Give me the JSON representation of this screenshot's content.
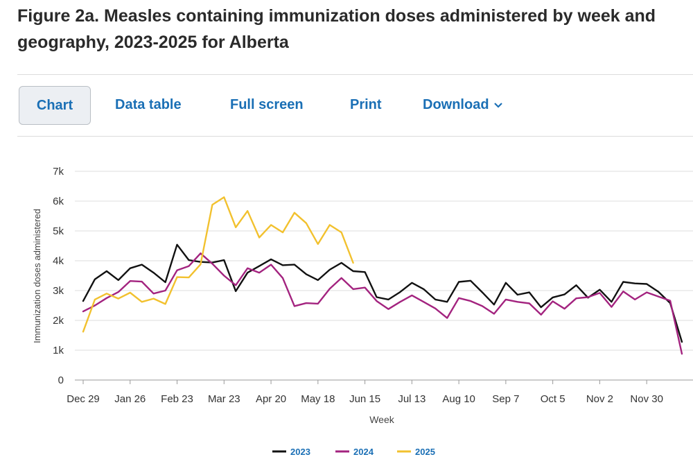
{
  "header": {
    "title": "Figure 2a. Measles containing immunization doses administered by week and geography, 2023-2025 for Alberta"
  },
  "toolbar": {
    "tabs": [
      {
        "label": "Chart",
        "active": true
      },
      {
        "label": "Data table"
      },
      {
        "label": "Full screen"
      },
      {
        "label": "Print"
      },
      {
        "label": "Download"
      }
    ]
  },
  "colors": {
    "accent": "#1a6fb5",
    "grid": "#dddddd",
    "axis": "#999999"
  },
  "chart_data": {
    "type": "line",
    "title": "",
    "ylabel": "Immunization doses administered",
    "xlabel": "Week",
    "ylim": [
      0,
      7000
    ],
    "yticks": [
      0,
      1000,
      2000,
      3000,
      4000,
      5000,
      6000,
      7000
    ],
    "ytick_labels": [
      "0",
      "1k",
      "2k",
      "3k",
      "4k",
      "5k",
      "6k",
      "7k"
    ],
    "x_tick_labels": [
      {
        "label": "Dec 29",
        "week": 0
      },
      {
        "label": "Jan 26",
        "week": 4
      },
      {
        "label": "Feb 23",
        "week": 8
      },
      {
        "label": "Mar 23",
        "week": 12
      },
      {
        "label": "Apr 20",
        "week": 16
      },
      {
        "label": "May 18",
        "week": 20
      },
      {
        "label": "Jun 15",
        "week": 24
      },
      {
        "label": "Jul 13",
        "week": 28
      },
      {
        "label": "Aug 10",
        "week": 32
      },
      {
        "label": "Sep 7",
        "week": 36
      },
      {
        "label": "Oct 5",
        "week": 40
      },
      {
        "label": "Nov 2",
        "week": 44
      },
      {
        "label": "Nov 30",
        "week": 48
      }
    ],
    "xlim": [
      0,
      52
    ],
    "legend_position": "bottom-center",
    "series": [
      {
        "name": "2023",
        "color": "#111111",
        "values": [
          2650,
          3380,
          3650,
          3350,
          3750,
          3870,
          3600,
          3280,
          4540,
          4020,
          3960,
          3940,
          4020,
          2980,
          3600,
          3820,
          4050,
          3850,
          3870,
          3550,
          3350,
          3700,
          3930,
          3650,
          3620,
          2780,
          2700,
          2950,
          3260,
          3050,
          2700,
          2620,
          3290,
          3330,
          2940,
          2530,
          3260,
          2860,
          2940,
          2440,
          2770,
          2870,
          3180,
          2760,
          3030,
          2620,
          3290,
          3240,
          3220,
          2960,
          2580,
          1280
        ]
      },
      {
        "name": "2024",
        "color": "#a3237f",
        "values": [
          2300,
          2500,
          2750,
          2950,
          3320,
          3300,
          2900,
          3000,
          3680,
          3820,
          4250,
          3900,
          3500,
          3180,
          3750,
          3600,
          3870,
          3420,
          2480,
          2580,
          2560,
          3060,
          3420,
          3050,
          3100,
          2650,
          2380,
          2620,
          2840,
          2620,
          2400,
          2080,
          2750,
          2650,
          2480,
          2220,
          2700,
          2620,
          2570,
          2190,
          2640,
          2390,
          2740,
          2780,
          2920,
          2450,
          2970,
          2700,
          2940,
          2800,
          2660,
          880
        ]
      },
      {
        "name": "2025",
        "color": "#f2c12e",
        "values": [
          1620,
          2700,
          2900,
          2730,
          2930,
          2620,
          2730,
          2550,
          3450,
          3440,
          3880,
          5880,
          6130,
          5120,
          5670,
          4780,
          5200,
          4950,
          5610,
          5260,
          4560,
          5200,
          4950,
          3930
        ]
      }
    ]
  }
}
